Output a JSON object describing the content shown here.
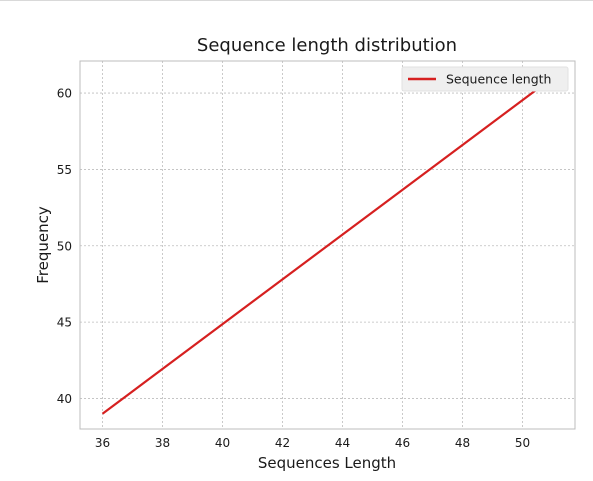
{
  "chart_data": {
    "type": "line",
    "title": "Sequence length distribution",
    "xlabel": "Sequences Length",
    "ylabel": "Frequency",
    "xlim": [
      35.25,
      51.75
    ],
    "ylim": [
      38.0,
      62.1
    ],
    "xticks": [
      36,
      38,
      40,
      42,
      44,
      46,
      48,
      50
    ],
    "yticks": [
      40,
      45,
      50,
      55,
      60
    ],
    "grid": true,
    "legend_position": "top-right",
    "series": [
      {
        "name": "Sequence length",
        "color": "#d62020",
        "x": [
          36,
          51
        ],
        "y": [
          39,
          61
        ]
      }
    ]
  }
}
